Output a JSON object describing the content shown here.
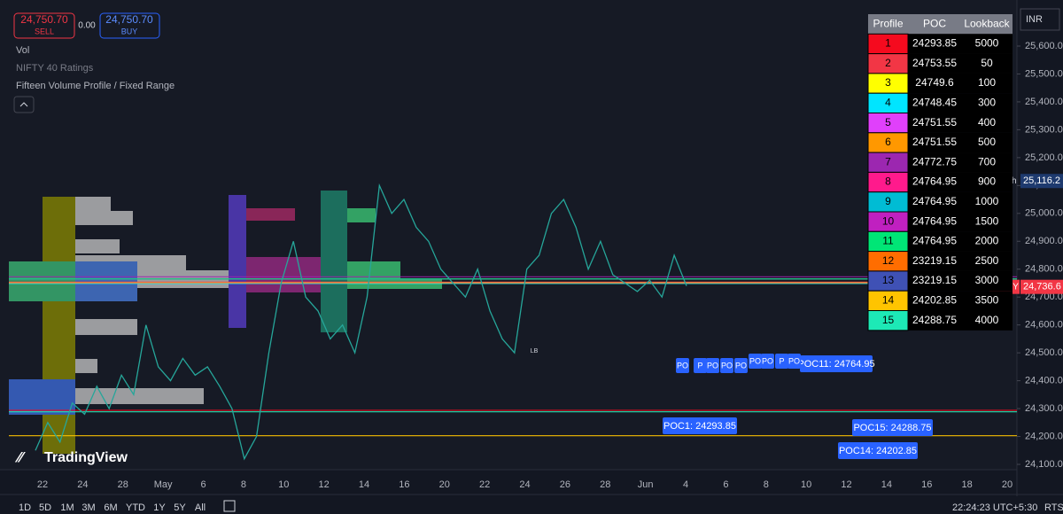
{
  "header": {
    "sell_price": "24,750.70",
    "sell_label": "SELL",
    "spread": "0.00",
    "buy_price": "24,750.70",
    "buy_label": "BUY"
  },
  "indicators": [
    "Vol",
    "NIFTY 40 Ratings",
    "Fifteen Volume Profile / Fixed Range"
  ],
  "table": {
    "headers": [
      "Profile",
      "POC",
      "Lookback"
    ],
    "rows": [
      {
        "profile": 1,
        "poc": 24293.85,
        "lookback": 5000,
        "color": "#f50a1e"
      },
      {
        "profile": 2,
        "poc": 24753.55,
        "lookback": 50,
        "color": "#f23645"
      },
      {
        "profile": 3,
        "poc": 24749.6,
        "lookback": 100,
        "color": "#ffff00"
      },
      {
        "profile": 4,
        "poc": 24748.45,
        "lookback": 300,
        "color": "#00e5ff"
      },
      {
        "profile": 5,
        "poc": 24751.55,
        "lookback": 400,
        "color": "#e040fb"
      },
      {
        "profile": 6,
        "poc": 24751.55,
        "lookback": 500,
        "color": "#ff9800"
      },
      {
        "profile": 7,
        "poc": 24772.75,
        "lookback": 700,
        "color": "#9c27b0"
      },
      {
        "profile": 8,
        "poc": 24764.95,
        "lookback": 900,
        "color": "#ff1a8c"
      },
      {
        "profile": 9,
        "poc": 24764.95,
        "lookback": 1000,
        "color": "#00bcd4"
      },
      {
        "profile": 10,
        "poc": 24764.95,
        "lookback": 1500,
        "color": "#c020c0"
      },
      {
        "profile": 11,
        "poc": 24764.95,
        "lookback": 2000,
        "color": "#00e676"
      },
      {
        "profile": 12,
        "poc": 23219.15,
        "lookback": 2500,
        "color": "#ff6d00"
      },
      {
        "profile": 13,
        "poc": 23219.15,
        "lookback": 3000,
        "color": "#3f51b5"
      },
      {
        "profile": 14,
        "poc": 24202.85,
        "lookback": 3500,
        "color": "#ffc400"
      },
      {
        "profile": 15,
        "poc": 24288.75,
        "lookback": 4000,
        "color": "#1de9b6"
      }
    ]
  },
  "price_axis": {
    "currency": "INR",
    "ylim": [
      24100,
      25600
    ],
    "ticks": [
      {
        "value": 24100,
        "label": "24,100.00"
      },
      {
        "value": 24200,
        "label": "24,200.00"
      },
      {
        "value": 24300,
        "label": "24,300.00"
      },
      {
        "value": 24400,
        "label": "24,400.00"
      },
      {
        "value": 24500,
        "label": "24,500.00"
      },
      {
        "value": 24600,
        "label": "24,600.00"
      },
      {
        "value": 24700,
        "label": "24,700.00"
      },
      {
        "value": 24800,
        "label": "24,800.00"
      },
      {
        "value": 24900,
        "label": "24,900.00"
      },
      {
        "value": 25000,
        "label": "25,000.00"
      },
      {
        "value": 25100,
        "label": "25,100.00"
      },
      {
        "value": 25200,
        "label": "25,200.00"
      },
      {
        "value": 25300,
        "label": "25,300.00"
      },
      {
        "value": 25400,
        "label": "25,400.00"
      },
      {
        "value": 25500,
        "label": "25,500.00"
      },
      {
        "value": 25600,
        "label": "25,600.00"
      }
    ],
    "high": {
      "label": "High",
      "value": 25116.2,
      "value_label": "25,116.2"
    },
    "last": {
      "label": "NIFTY",
      "value": 24736.6,
      "value_label": "24,736.6"
    }
  },
  "price_series": [
    24150,
    24250,
    24180,
    24320,
    24280,
    24380,
    24300,
    24420,
    24350,
    24600,
    24450,
    24400,
    24480,
    24420,
    24450,
    24380,
    24300,
    24120,
    24200,
    24500,
    24750,
    24900,
    24700,
    24650,
    24550,
    24600,
    24500,
    24700,
    25100,
    25000,
    25050,
    24950,
    24900,
    24800,
    24750,
    24700,
    24800,
    24650,
    24550,
    24500,
    24800,
    24850,
    25000,
    25050,
    24950,
    24800,
    24900,
    24780,
    24750,
    24720,
    24760,
    24700,
    24850,
    24740
  ],
  "poc_labels": [
    "POC1: 24293.85",
    "POC15: 24288.75",
    "POC14: 24202.85",
    "POC11: 24764.95"
  ],
  "small_poc_labels": [
    "PO",
    "P",
    "PO",
    "PO",
    "PO",
    "PO",
    "PO",
    "P",
    "PO"
  ],
  "marker": "LB",
  "logo": "TradingView",
  "x_labels": [
    "22",
    "24",
    "28",
    "May",
    "6",
    "8",
    "10",
    "12",
    "14",
    "16",
    "20",
    "22",
    "24",
    "26",
    "28",
    "Jun",
    "4",
    "6",
    "8",
    "10",
    "12",
    "14",
    "16",
    "18",
    "20"
  ],
  "timeframes": [
    "1D",
    "5D",
    "1M",
    "3M",
    "6M",
    "YTD",
    "1Y",
    "5Y",
    "All"
  ],
  "clock": "22:24:23 UTC+5:30",
  "session": "RTS"
}
